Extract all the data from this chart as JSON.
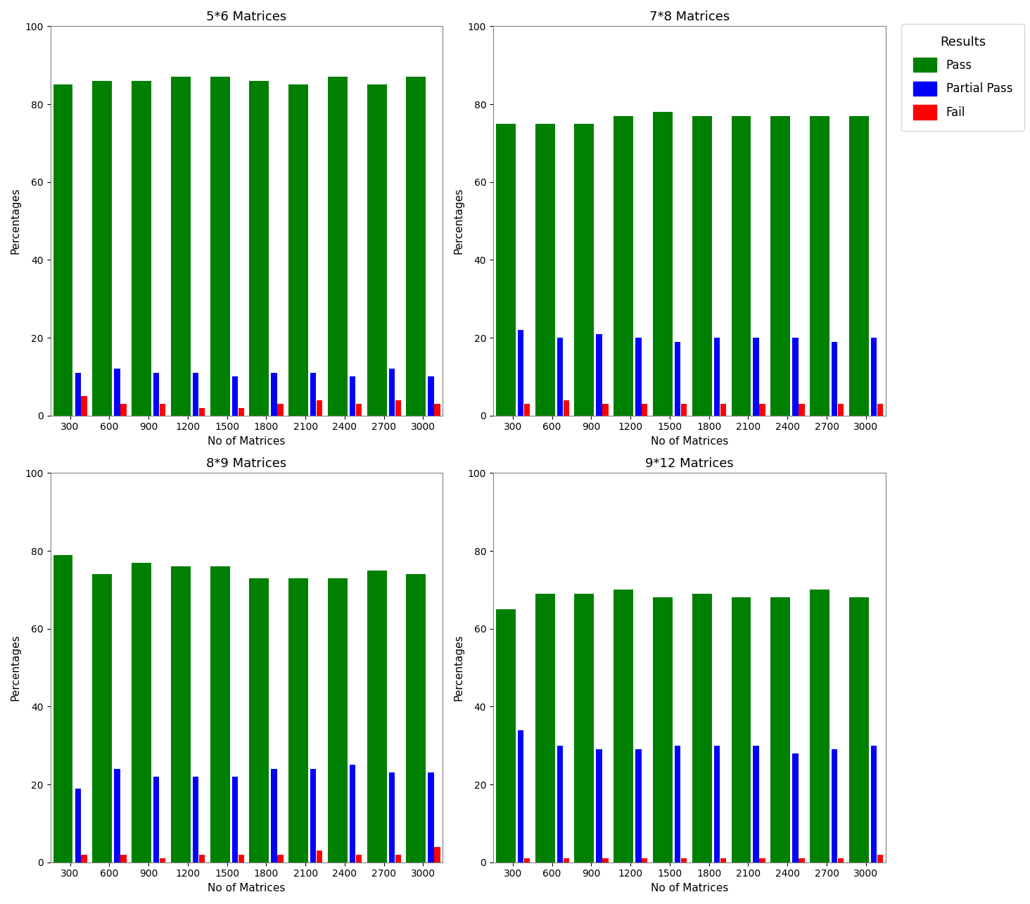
{
  "categories": [
    300,
    600,
    900,
    1200,
    1500,
    1800,
    2100,
    2400,
    2700,
    3000
  ],
  "subplots": [
    {
      "title": "5*6 Matrices",
      "pass": [
        85,
        86,
        86,
        87,
        87,
        86,
        85,
        87,
        85,
        87
      ],
      "partial_pass": [
        11,
        12,
        11,
        11,
        10,
        11,
        11,
        10,
        12,
        10
      ],
      "fail": [
        5,
        3,
        3,
        2,
        2,
        3,
        4,
        3,
        4,
        3
      ]
    },
    {
      "title": "7*8 Matrices",
      "pass": [
        75,
        75,
        75,
        77,
        78,
        77,
        77,
        77,
        77,
        77
      ],
      "partial_pass": [
        22,
        20,
        21,
        20,
        19,
        20,
        20,
        20,
        19,
        20
      ],
      "fail": [
        3,
        4,
        3,
        3,
        3,
        3,
        3,
        3,
        3,
        3
      ]
    },
    {
      "title": "8*9 Matrices",
      "pass": [
        79,
        74,
        77,
        76,
        76,
        73,
        73,
        73,
        75,
        74
      ],
      "partial_pass": [
        19,
        24,
        22,
        22,
        22,
        24,
        24,
        25,
        23,
        23
      ],
      "fail": [
        2,
        2,
        1,
        2,
        2,
        2,
        3,
        2,
        2,
        4
      ]
    },
    {
      "title": "9*12 Matrices",
      "pass": [
        65,
        69,
        69,
        70,
        68,
        69,
        68,
        68,
        70,
        68
      ],
      "partial_pass": [
        34,
        30,
        29,
        29,
        30,
        30,
        30,
        28,
        29,
        30
      ],
      "fail": [
        1,
        1,
        1,
        1,
        1,
        1,
        1,
        1,
        1,
        2
      ]
    }
  ],
  "colors": {
    "pass": "#008000",
    "partial_pass": "#0000ff",
    "fail": "#ff0000"
  },
  "ylabel": "Percentages",
  "xlabel": "No of Matrices",
  "ylim": [
    0,
    100
  ],
  "legend_title": "Results",
  "legend_labels": [
    "Pass",
    "Partial Pass",
    "Fail"
  ],
  "green_bar_width": 0.5,
  "small_bar_width": 0.15,
  "title_fontsize": 13,
  "axis_label_fontsize": 11,
  "tick_fontsize": 10,
  "legend_fontsize": 12,
  "legend_title_fontsize": 13
}
